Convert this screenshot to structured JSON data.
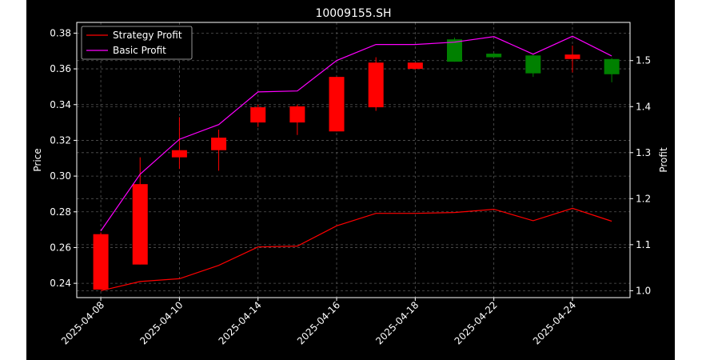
{
  "chart_data": {
    "type": "candlestick",
    "title": "10009155.SH",
    "xlabel": "",
    "ylabel_left": "Price",
    "ylabel_right": "Profit",
    "ylim_left": [
      0.232,
      0.386
    ],
    "ylim_right": [
      0.985,
      1.583
    ],
    "yticks_left": [
      "0.24",
      "0.26",
      "0.28",
      "0.30",
      "0.32",
      "0.34",
      "0.36",
      "0.38"
    ],
    "yticks_right": [
      "1.0",
      "1.1",
      "1.2",
      "1.3",
      "1.4",
      "1.5"
    ],
    "xtick_labels": [
      "2025-04-08",
      "2025-04-10",
      "2025-04-14",
      "2025-04-16",
      "2025-04-18",
      "2025-04-22",
      "2025-04-24"
    ],
    "xtick_positions": [
      0,
      2,
      4,
      6,
      8,
      10,
      12
    ],
    "grid": true,
    "legend_position": "top-left",
    "colors": {
      "up": "#ff0000",
      "down": "#008000",
      "strategy": "#ff0000",
      "basic": "#ff00ff",
      "grid": "#555555",
      "background": "#000000",
      "axes": "#ffffff"
    },
    "candles": [
      {
        "date": "2025-04-08",
        "open": 0.2365,
        "high": 0.2685,
        "low": 0.2365,
        "close": 0.2675
      },
      {
        "date": "2025-04-09",
        "open": 0.2505,
        "high": 0.3105,
        "low": 0.2505,
        "close": 0.2955
      },
      {
        "date": "2025-04-10",
        "open": 0.3105,
        "high": 0.333,
        "low": 0.304,
        "close": 0.3145
      },
      {
        "date": "2025-04-11",
        "open": 0.3145,
        "high": 0.326,
        "low": 0.303,
        "close": 0.3215
      },
      {
        "date": "2025-04-14",
        "open": 0.33,
        "high": 0.34,
        "low": 0.3275,
        "close": 0.3385
      },
      {
        "date": "2025-04-15",
        "open": 0.33,
        "high": 0.34,
        "low": 0.323,
        "close": 0.339
      },
      {
        "date": "2025-04-16",
        "open": 0.325,
        "high": 0.3555,
        "low": 0.325,
        "close": 0.3555
      },
      {
        "date": "2025-04-17",
        "open": 0.3385,
        "high": 0.3665,
        "low": 0.3365,
        "close": 0.3635
      },
      {
        "date": "2025-04-18",
        "open": 0.36,
        "high": 0.3635,
        "low": 0.3595,
        "close": 0.3635
      },
      {
        "date": "2025-04-21",
        "open": 0.3765,
        "high": 0.3775,
        "low": 0.364,
        "close": 0.364
      },
      {
        "date": "2025-04-22",
        "open": 0.3685,
        "high": 0.369,
        "low": 0.3665,
        "close": 0.3665
      },
      {
        "date": "2025-04-23",
        "open": 0.3675,
        "high": 0.368,
        "low": 0.3555,
        "close": 0.3575
      },
      {
        "date": "2025-04-24",
        "open": 0.3655,
        "high": 0.373,
        "low": 0.358,
        "close": 0.368
      },
      {
        "date": "2025-04-25",
        "open": 0.3655,
        "high": 0.366,
        "low": 0.3525,
        "close": 0.357
      }
    ],
    "series": [
      {
        "name": "Strategy Profit",
        "axis": "right",
        "values": [
          1.0,
          1.02,
          1.026,
          1.055,
          1.095,
          1.097,
          1.141,
          1.168,
          1.168,
          1.17,
          1.177,
          1.152,
          1.179,
          1.151
        ]
      },
      {
        "name": "Basic Profit",
        "axis": "right",
        "values": [
          1.13,
          1.253,
          1.329,
          1.361,
          1.432,
          1.434,
          1.5,
          1.535,
          1.535,
          1.54,
          1.552,
          1.514,
          1.553,
          1.51
        ]
      }
    ]
  }
}
